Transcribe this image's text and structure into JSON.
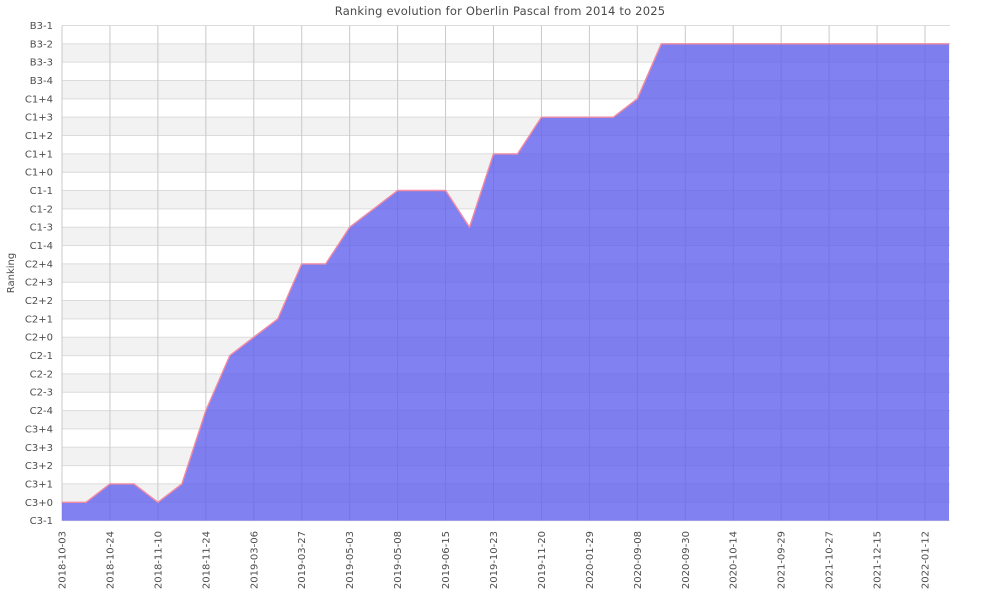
{
  "chart_data": {
    "type": "area",
    "title": "Ranking evolution for Oberlin Pascal from 2014 to 2025",
    "ylabel": "Ranking",
    "xlabel": "",
    "legend": "none",
    "grid": true,
    "y_ticks_top_to_bottom": [
      "B3-1",
      "B3-2",
      "B3-3",
      "B3-4",
      "C1+4",
      "C1+3",
      "C1+2",
      "C1+1",
      "C1+0",
      "C1-1",
      "C1-2",
      "C1-3",
      "C1-4",
      "C2+4",
      "C2+3",
      "C2+2",
      "C2+1",
      "C2+0",
      "C2-1",
      "C2-2",
      "C2-3",
      "C2-4",
      "C3+4",
      "C3+3",
      "C3+2",
      "C3+1",
      "C3+0",
      "C3-1"
    ],
    "x_tick_labels": [
      "2018-10-03",
      "2018-10-24",
      "2018-11-10",
      "2018-11-24",
      "2019-03-06",
      "2019-03-27",
      "2019-05-03",
      "2019-05-08",
      "2019-06-15",
      "2019-10-23",
      "2019-11-20",
      "2020-01-29",
      "2020-09-08",
      "2020-09-30",
      "2020-10-14",
      "2021-09-29",
      "2021-10-27",
      "2021-12-15",
      "2022-01-12"
    ],
    "points_per_tick_interval": 2,
    "series": [
      {
        "name": "ranking",
        "values": [
          "C3+0",
          "C3+0",
          "C3+1",
          "C3+1",
          "C3+0",
          "C3+1",
          "C2-4",
          "C2-1",
          "C2+0",
          "C2+1",
          "C2+4",
          "C2+4",
          "C1-3",
          "C1-2",
          "C1-1",
          "C1-1",
          "C1-1",
          "C1-3",
          "C1+1",
          "C1+1",
          "C1+3",
          "C1+3",
          "C1+3",
          "C1+3",
          "C1+4",
          "B3-2",
          "B3-2",
          "B3-2",
          "B3-2",
          "B3-2",
          "B3-2",
          "B3-2",
          "B3-2",
          "B3-2",
          "B3-2",
          "B3-2",
          "B3-2",
          "B3-2"
        ]
      }
    ],
    "colors": {
      "area_fill": "rgba(94,94,237,0.78)",
      "series_line": "#f28aa2",
      "band_gray": "#f2f2f2",
      "band_white": "#ffffff",
      "h_gridline": "#dcdcdc",
      "v_gridline": "#c9c9c9",
      "tick_text": "#4d4d4d",
      "title_text": "#4a4a4a"
    }
  }
}
